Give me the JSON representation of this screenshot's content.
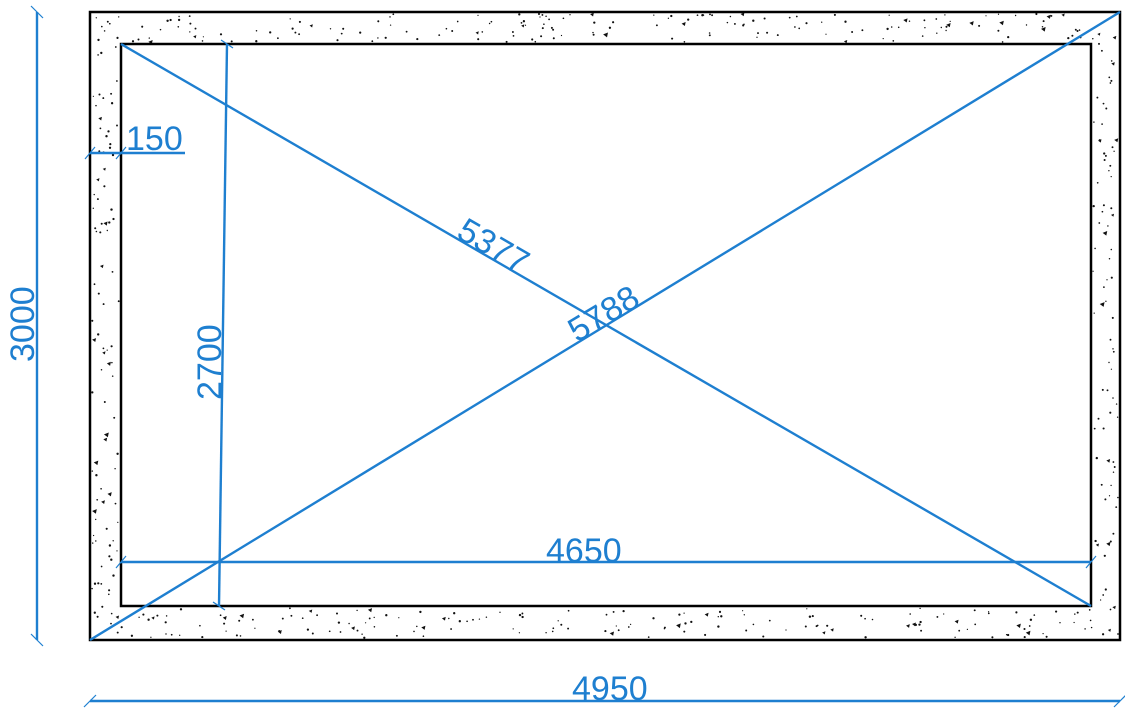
{
  "drawing": {
    "colors": {
      "dimension": "#1e7fd0",
      "outline": "#000000",
      "hatch": "#111111",
      "background": "#ffffff"
    },
    "hatch_pattern": "concrete",
    "dimensions": {
      "overall_width": "4950",
      "overall_height": "3000",
      "inner_width": "4650",
      "inner_height": "2700",
      "wall_thickness": "150",
      "diagonal_inner": "5377",
      "diagonal_outer": "5788"
    }
  }
}
